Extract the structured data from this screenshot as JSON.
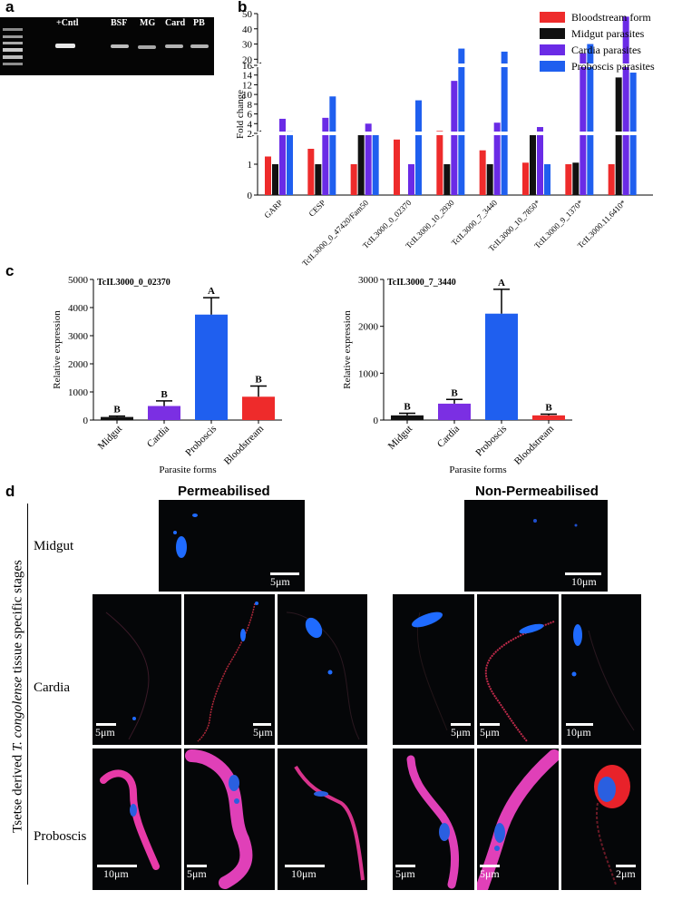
{
  "panel_a": {
    "label": "a",
    "lane_labels": [
      "+Cntl",
      "BSF",
      "MG",
      "Card",
      "PB"
    ]
  },
  "panel_b": {
    "label": "b",
    "ylabel": "Fold change",
    "legend": [
      "Bloodstream form",
      "Midgut parasites",
      "Cardia parasites",
      "Proboscis parasites"
    ]
  },
  "panel_c": {
    "label": "c",
    "ylabel": "Relative expression",
    "xlabel": "Parasite forms"
  },
  "panel_d": {
    "label": "d",
    "col_permeabilised": "Permeabilised",
    "col_nonpermeabilised": "Non-Permeabilised",
    "side_label_pre": "Tsetse derived ",
    "side_label_italic": "T. congolense",
    "side_label_post": " tissue specific stages",
    "row_midgut": "Midgut",
    "row_cardia": "Cardia",
    "row_proboscis": "Proboscis",
    "scales": {
      "mg_perm": "5μm",
      "mg_non": "10μm",
      "c1": "5μm",
      "c2": "5μm",
      "c4": "5μm",
      "c5": "5μm",
      "c6": "10μm",
      "p1": "10μm",
      "p2": "5μm",
      "p3": "10μm",
      "p4": "5μm",
      "p5": "5μm",
      "p6": "2μm"
    }
  },
  "chart_data": [
    {
      "type": "bar",
      "title": "",
      "ylabel": "Fold change",
      "yscale": "broken",
      "yticks": [
        0,
        1,
        2,
        4,
        6,
        8,
        10,
        12,
        14,
        16,
        20,
        30,
        40,
        50
      ],
      "categories": [
        "GARP",
        "CESP",
        "TcIL3000_0_47420/Fam50",
        "TcIL3000_0_02370",
        "TcIL3000_10_2930",
        "TcIL3000_7_3440",
        "TcIL3000_10_7850*",
        "TcIL3000_9_1370*",
        "TcIL3000.11.6410*"
      ],
      "series": [
        {
          "name": "Bloodstream form",
          "color": "#ee2b2b",
          "values": [
            1.25,
            1.5,
            1.0,
            1.8,
            2.5,
            1.45,
            1.05,
            1.0,
            1.0
          ]
        },
        {
          "name": "Midgut parasites",
          "color": "#111111",
          "values": [
            1.0,
            1.0,
            2.0,
            0,
            1.0,
            1.0,
            2.2,
            1.05,
            13.5
          ]
        },
        {
          "name": "Cardia parasites",
          "color": "#6a2be6",
          "values": [
            5.0,
            5.2,
            4.0,
            1.0,
            12.8,
            4.2,
            3.3,
            24,
            48
          ]
        },
        {
          "name": "Proboscis parasites",
          "color": "#1f5fef",
          "values": [
            2.4,
            9.6,
            2.0,
            8.8,
            27,
            25,
            1.0,
            30,
            14.5
          ]
        }
      ]
    },
    {
      "type": "bar",
      "title": "TcIL3000_0_02370",
      "xlabel": "Parasite forms",
      "ylabel": "Relative expression",
      "ylim": [
        0,
        5000
      ],
      "yticks": [
        0,
        1000,
        2000,
        3000,
        4000,
        5000
      ],
      "categories": [
        "Midgut",
        "Cardia",
        "Proboscis",
        "Bloodstream"
      ],
      "values": [
        110,
        500,
        3750,
        830
      ],
      "errors": [
        30,
        180,
        600,
        380
      ],
      "significance": [
        "B",
        "B",
        "A",
        "B"
      ],
      "colors": [
        "#111111",
        "#7b2fe3",
        "#1f5fef",
        "#ee2b2b"
      ]
    },
    {
      "type": "bar",
      "title": "TcIL3000_7_3440",
      "xlabel": "Parasite forms",
      "ylabel": "Relative expression",
      "ylim": [
        0,
        3000
      ],
      "yticks": [
        0,
        1000,
        2000,
        3000
      ],
      "categories": [
        "Midgut",
        "Cardia",
        "Proboscis",
        "Bloodstream"
      ],
      "values": [
        100,
        350,
        2270,
        100
      ],
      "errors": [
        45,
        90,
        520,
        25
      ],
      "significance": [
        "B",
        "B",
        "A",
        "B"
      ],
      "colors": [
        "#111111",
        "#7b2fe3",
        "#1f5fef",
        "#ee2b2b"
      ]
    }
  ]
}
